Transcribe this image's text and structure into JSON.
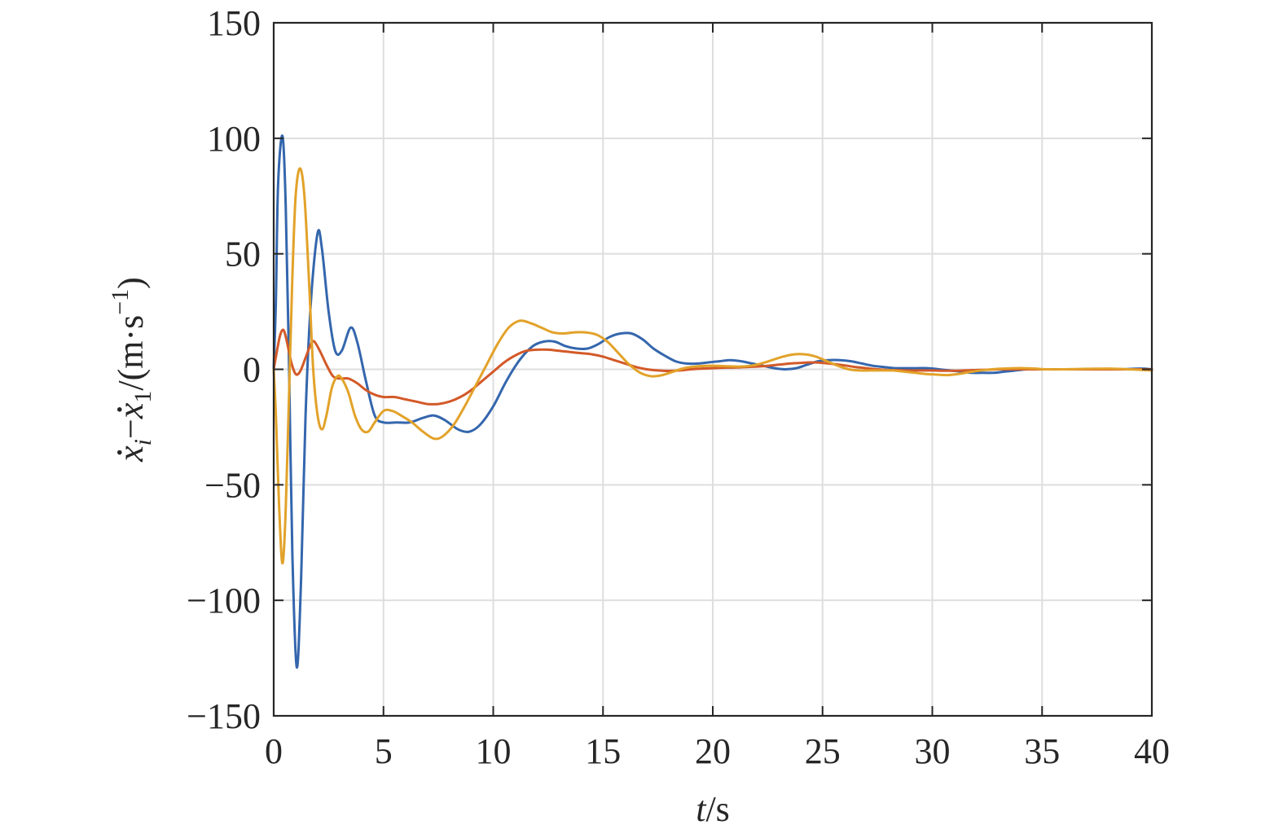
{
  "chart_data": {
    "type": "line",
    "xlabel": {
      "italic": "t",
      "rest": "/s"
    },
    "ylabel": {
      "x": "x",
      "sub_i": "i",
      "minus": "−",
      "sub_1": "1",
      "unit_open": "/(m·s",
      "sup": "−1",
      "unit_close": ")"
    },
    "xlim": [
      0,
      40
    ],
    "ylim": [
      -150,
      150
    ],
    "xticks": [
      0,
      5,
      10,
      15,
      20,
      25,
      30,
      35,
      40
    ],
    "yticks": [
      -150,
      -100,
      -50,
      0,
      50,
      100,
      150
    ],
    "xtick_labels": [
      "0",
      "5",
      "10",
      "15",
      "20",
      "25",
      "30",
      "35",
      "40"
    ],
    "ytick_labels": [
      "−150",
      "−100",
      "−50",
      "0",
      "50",
      "100",
      "150"
    ],
    "grid": true,
    "series": [
      {
        "color": "#3466ad",
        "points": [
          [
            0,
            0
          ],
          [
            0.1,
            30
          ],
          [
            0.2,
            80
          ],
          [
            0.4,
            101
          ],
          [
            0.55,
            70
          ],
          [
            0.7,
            0
          ],
          [
            0.85,
            -80
          ],
          [
            1.05,
            -129
          ],
          [
            1.25,
            -90
          ],
          [
            1.45,
            -20
          ],
          [
            1.7,
            30
          ],
          [
            2.0,
            59
          ],
          [
            2.2,
            52
          ],
          [
            2.5,
            25
          ],
          [
            2.8,
            8
          ],
          [
            3.1,
            8
          ],
          [
            3.5,
            18
          ],
          [
            3.8,
            12
          ],
          [
            4.2,
            -5
          ],
          [
            4.6,
            -20
          ],
          [
            5.0,
            -23
          ],
          [
            5.6,
            -23
          ],
          [
            6.2,
            -23
          ],
          [
            6.8,
            -21
          ],
          [
            7.3,
            -20
          ],
          [
            7.8,
            -22
          ],
          [
            8.4,
            -26
          ],
          [
            8.9,
            -27
          ],
          [
            9.4,
            -24
          ],
          [
            10.0,
            -16
          ],
          [
            10.6,
            -5
          ],
          [
            11.2,
            4
          ],
          [
            11.8,
            10
          ],
          [
            12.3,
            12
          ],
          [
            12.8,
            12
          ],
          [
            13.3,
            10
          ],
          [
            13.8,
            9
          ],
          [
            14.3,
            9
          ],
          [
            14.8,
            11
          ],
          [
            15.3,
            14
          ],
          [
            15.8,
            15.5
          ],
          [
            16.3,
            15.5
          ],
          [
            16.8,
            13
          ],
          [
            17.3,
            9
          ],
          [
            17.8,
            6
          ],
          [
            18.3,
            3.5
          ],
          [
            18.8,
            2.5
          ],
          [
            19.3,
            2.5
          ],
          [
            19.8,
            3
          ],
          [
            20.3,
            3.5
          ],
          [
            20.8,
            4
          ],
          [
            21.3,
            3.5
          ],
          [
            21.8,
            2.5
          ],
          [
            22.3,
            1.5
          ],
          [
            22.8,
            0.5
          ],
          [
            23.3,
            0
          ],
          [
            23.8,
            0.5
          ],
          [
            24.3,
            2
          ],
          [
            24.8,
            3.5
          ],
          [
            25.3,
            4
          ],
          [
            25.8,
            4
          ],
          [
            26.3,
            3.5
          ],
          [
            26.8,
            2.5
          ],
          [
            27.3,
            1.5
          ],
          [
            27.8,
            1
          ],
          [
            28.3,
            0.5
          ],
          [
            28.8,
            0.5
          ],
          [
            29.3,
            0.5
          ],
          [
            29.8,
            0.5
          ],
          [
            30.3,
            0
          ],
          [
            30.8,
            -0.5
          ],
          [
            31.3,
            -1
          ],
          [
            31.8,
            -1.5
          ],
          [
            32.3,
            -1.5
          ],
          [
            32.8,
            -1.5
          ],
          [
            33.3,
            -1
          ],
          [
            33.8,
            -0.5
          ],
          [
            34.3,
            0
          ],
          [
            34.8,
            0
          ],
          [
            35.3,
            0
          ],
          [
            35.8,
            0
          ],
          [
            36.5,
            0
          ],
          [
            37.5,
            0
          ],
          [
            38.5,
            0
          ],
          [
            39.5,
            0.3
          ],
          [
            40,
            0
          ]
        ]
      },
      {
        "color": "#d35928",
        "points": [
          [
            0,
            0
          ],
          [
            0.15,
            8
          ],
          [
            0.3,
            15
          ],
          [
            0.45,
            17
          ],
          [
            0.6,
            12
          ],
          [
            0.8,
            3
          ],
          [
            1.0,
            -2
          ],
          [
            1.2,
            -1
          ],
          [
            1.45,
            5
          ],
          [
            1.7,
            11
          ],
          [
            1.85,
            12
          ],
          [
            2.1,
            8
          ],
          [
            2.4,
            2
          ],
          [
            2.7,
            -3
          ],
          [
            3.0,
            -4
          ],
          [
            3.4,
            -4
          ],
          [
            3.8,
            -6
          ],
          [
            4.2,
            -9
          ],
          [
            4.6,
            -11
          ],
          [
            5.0,
            -12
          ],
          [
            5.5,
            -12
          ],
          [
            6.0,
            -13
          ],
          [
            6.5,
            -14
          ],
          [
            7.0,
            -15
          ],
          [
            7.5,
            -15
          ],
          [
            8.0,
            -14
          ],
          [
            8.5,
            -12
          ],
          [
            9.0,
            -9
          ],
          [
            9.5,
            -5
          ],
          [
            10.0,
            -1
          ],
          [
            10.5,
            3
          ],
          [
            11.0,
            6
          ],
          [
            11.5,
            8
          ],
          [
            12.0,
            8.5
          ],
          [
            12.5,
            8.5
          ],
          [
            13.0,
            8
          ],
          [
            13.5,
            7.5
          ],
          [
            14.0,
            7
          ],
          [
            14.5,
            6.5
          ],
          [
            15.0,
            5.5
          ],
          [
            15.5,
            4
          ],
          [
            16.0,
            2.5
          ],
          [
            16.5,
            1
          ],
          [
            17.0,
            0
          ],
          [
            17.5,
            -0.5
          ],
          [
            18.0,
            -0.7
          ],
          [
            18.5,
            -0.5
          ],
          [
            19.0,
            0
          ],
          [
            19.5,
            0.3
          ],
          [
            20.0,
            0.5
          ],
          [
            20.5,
            0.7
          ],
          [
            21.0,
            0.8
          ],
          [
            21.5,
            1
          ],
          [
            22.0,
            1.2
          ],
          [
            22.5,
            1.5
          ],
          [
            23.0,
            2
          ],
          [
            23.5,
            2.5
          ],
          [
            24.0,
            2.8
          ],
          [
            24.5,
            3
          ],
          [
            25.0,
            2.8
          ],
          [
            25.5,
            2.3
          ],
          [
            26.0,
            1.7
          ],
          [
            26.5,
            1
          ],
          [
            27.0,
            0.5
          ],
          [
            27.5,
            0
          ],
          [
            28.0,
            -0.3
          ],
          [
            28.5,
            -0.4
          ],
          [
            29.0,
            -0.5
          ],
          [
            29.5,
            -0.5
          ],
          [
            30.0,
            -0.5
          ],
          [
            30.5,
            -0.6
          ],
          [
            31.0,
            -0.6
          ],
          [
            31.5,
            -0.5
          ],
          [
            32.0,
            -0.3
          ],
          [
            32.5,
            -0.2
          ],
          [
            33.0,
            0
          ],
          [
            34.0,
            0
          ],
          [
            35.0,
            0
          ],
          [
            36.0,
            0
          ],
          [
            37.0,
            0
          ],
          [
            38.0,
            0
          ],
          [
            39.0,
            0
          ],
          [
            40,
            0
          ]
        ]
      },
      {
        "color": "#e2a229",
        "points": [
          [
            0,
            0
          ],
          [
            0.1,
            -20
          ],
          [
            0.25,
            -60
          ],
          [
            0.4,
            -84
          ],
          [
            0.55,
            -60
          ],
          [
            0.7,
            -10
          ],
          [
            0.85,
            40
          ],
          [
            1.0,
            75
          ],
          [
            1.2,
            87
          ],
          [
            1.4,
            75
          ],
          [
            1.6,
            40
          ],
          [
            1.8,
            0
          ],
          [
            2.0,
            -20
          ],
          [
            2.2,
            -26
          ],
          [
            2.4,
            -20
          ],
          [
            2.65,
            -8
          ],
          [
            2.9,
            -3
          ],
          [
            3.1,
            -4
          ],
          [
            3.4,
            -10
          ],
          [
            3.7,
            -20
          ],
          [
            4.0,
            -26
          ],
          [
            4.3,
            -27
          ],
          [
            4.6,
            -23
          ],
          [
            5.0,
            -18
          ],
          [
            5.4,
            -18
          ],
          [
            5.8,
            -20
          ],
          [
            6.3,
            -23
          ],
          [
            6.8,
            -27
          ],
          [
            7.3,
            -30
          ],
          [
            7.7,
            -29
          ],
          [
            8.2,
            -24
          ],
          [
            8.7,
            -16
          ],
          [
            9.2,
            -7
          ],
          [
            9.7,
            2
          ],
          [
            10.2,
            11
          ],
          [
            10.7,
            18
          ],
          [
            11.2,
            21
          ],
          [
            11.7,
            20
          ],
          [
            12.2,
            18
          ],
          [
            12.7,
            16
          ],
          [
            13.2,
            15.5
          ],
          [
            13.7,
            16
          ],
          [
            14.2,
            16
          ],
          [
            14.7,
            15
          ],
          [
            15.2,
            12
          ],
          [
            15.7,
            7
          ],
          [
            16.2,
            2
          ],
          [
            16.7,
            -1.5
          ],
          [
            17.2,
            -3
          ],
          [
            17.7,
            -2.5
          ],
          [
            18.2,
            -1
          ],
          [
            18.7,
            0.5
          ],
          [
            19.2,
            1.2
          ],
          [
            19.7,
            1.5
          ],
          [
            20.2,
            1.5
          ],
          [
            20.7,
            1.3
          ],
          [
            21.2,
            1.2
          ],
          [
            21.7,
            1.5
          ],
          [
            22.2,
            2.5
          ],
          [
            22.7,
            4
          ],
          [
            23.2,
            5.5
          ],
          [
            23.7,
            6.5
          ],
          [
            24.2,
            6.5
          ],
          [
            24.7,
            5.5
          ],
          [
            25.2,
            3.5
          ],
          [
            25.7,
            1.5
          ],
          [
            26.2,
            0
          ],
          [
            26.7,
            -0.5
          ],
          [
            27.2,
            -0.5
          ],
          [
            27.7,
            -0.5
          ],
          [
            28.2,
            -0.5
          ],
          [
            28.7,
            -1
          ],
          [
            29.2,
            -1.5
          ],
          [
            29.7,
            -2
          ],
          [
            30.2,
            -2.3
          ],
          [
            30.7,
            -2.5
          ],
          [
            31.2,
            -2
          ],
          [
            31.7,
            -1.2
          ],
          [
            32.2,
            -0.5
          ],
          [
            32.7,
            0
          ],
          [
            33.2,
            0.3
          ],
          [
            33.7,
            0.5
          ],
          [
            34.2,
            0.5
          ],
          [
            34.7,
            0.3
          ],
          [
            35.2,
            0
          ],
          [
            36.0,
            0
          ],
          [
            37.0,
            0.2
          ],
          [
            38.0,
            0.3
          ],
          [
            39.0,
            0
          ],
          [
            40,
            -0.5
          ]
        ]
      }
    ]
  }
}
